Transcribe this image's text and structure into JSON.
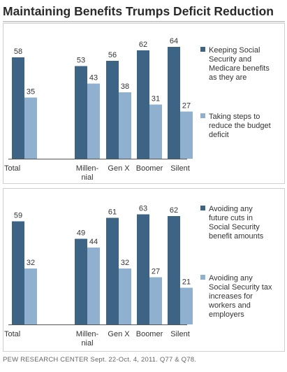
{
  "title": "Maintaining Benefits Trumps Deficit Reduction",
  "source": "PEW RESEARCH CENTER Sept. 22-Oct. 4, 2011. Q77 & Q78.",
  "colors": {
    "dark": "#3e6485",
    "light": "#8fb1cf",
    "rule": "#9a9a9a",
    "box": "#cfcfcf"
  },
  "chart_data": [
    {
      "type": "bar",
      "title": "",
      "xlabel": "",
      "ylabel": "",
      "ylim": [
        0,
        70
      ],
      "grid": false,
      "legend_position": "right",
      "categories": [
        "Total",
        "Millen-\nnial",
        "Gen X",
        "Boomer",
        "Silent"
      ],
      "series": [
        {
          "name": "Keeping Social\nSecurity and\nMedicare benefits\nas they are",
          "color": "#3e6485",
          "values": [
            58,
            53,
            56,
            62,
            64
          ]
        },
        {
          "name": "Taking steps to\nreduce the budget\ndeficit",
          "color": "#8fb1cf",
          "values": [
            35,
            43,
            38,
            31,
            27
          ]
        }
      ]
    },
    {
      "type": "bar",
      "title": "",
      "xlabel": "",
      "ylabel": "",
      "ylim": [
        0,
        70
      ],
      "grid": false,
      "legend_position": "right",
      "categories": [
        "Total",
        "Millen-\nnial",
        "Gen X",
        "Boomer",
        "Silent"
      ],
      "series": [
        {
          "name": "Avoiding any\nfuture cuts in\nSocial Security\nbenefit amounts",
          "color": "#3e6485",
          "values": [
            59,
            49,
            61,
            63,
            62
          ]
        },
        {
          "name": "Avoiding any\nSocial Security tax\nincreases for\nworkers and\nemployers",
          "color": "#8fb1cf",
          "values": [
            32,
            44,
            32,
            27,
            21
          ]
        }
      ]
    }
  ]
}
